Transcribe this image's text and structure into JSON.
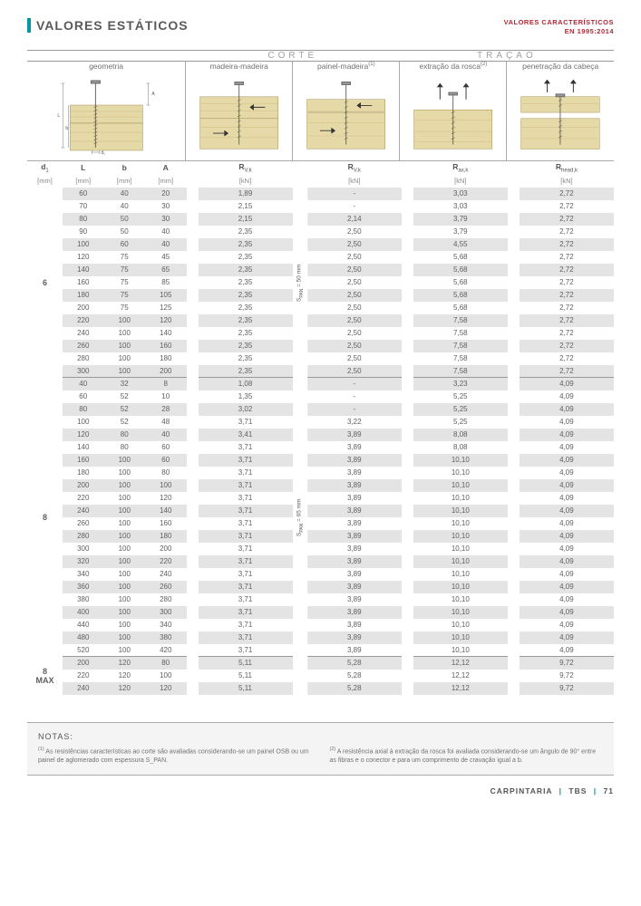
{
  "page_title": "VALORES ESTÁTICOS",
  "corner_text1": "VALORES CARACTERÍSTICOS",
  "corner_text2": "EN 1995:2014",
  "group_labels": {
    "corte": "CORTE",
    "tracao": "TRAÇÃO"
  },
  "column_headers": {
    "geom": "geometria",
    "mm": "madeira-madeira",
    "pm": "painel-madeira",
    "pm_sup": "(1)",
    "er": "extração da rosca",
    "er_sup": "(2)",
    "pc": "penetração da cabeça"
  },
  "symbols": {
    "d1": "d",
    "d1_sub": "1",
    "L": "L",
    "b": "b",
    "A": "A",
    "rvk": "R",
    "rvk_sub": "V,k",
    "raxk": "R",
    "raxk_sub": "ax,k",
    "rhk": "R",
    "rhk_sub": "head,k"
  },
  "units": {
    "mm": "[mm]",
    "kn": "[kN]"
  },
  "vlabels": {
    "s50": "S_PAN = 50 mm",
    "s65": "S_PAN = 65 mm"
  },
  "sections": [
    {
      "d1": "6",
      "vlabel": "s50",
      "rows": [
        [
          "60",
          "40",
          "20",
          "1,89",
          "-",
          "3,03",
          "2,72"
        ],
        [
          "70",
          "40",
          "30",
          "2,15",
          "-",
          "3,03",
          "2,72"
        ],
        [
          "80",
          "50",
          "30",
          "2,15",
          "2,14",
          "3,79",
          "2,72"
        ],
        [
          "90",
          "50",
          "40",
          "2,35",
          "2,50",
          "3,79",
          "2,72"
        ],
        [
          "100",
          "60",
          "40",
          "2,35",
          "2,50",
          "4,55",
          "2,72"
        ],
        [
          "120",
          "75",
          "45",
          "2,35",
          "2,50",
          "5,68",
          "2,72"
        ],
        [
          "140",
          "75",
          "65",
          "2,35",
          "2,50",
          "5,68",
          "2,72"
        ],
        [
          "160",
          "75",
          "85",
          "2,35",
          "2,50",
          "5,68",
          "2,72"
        ],
        [
          "180",
          "75",
          "105",
          "2,35",
          "2,50",
          "5,68",
          "2,72"
        ],
        [
          "200",
          "75",
          "125",
          "2,35",
          "2,50",
          "5,68",
          "2,72"
        ],
        [
          "220",
          "100",
          "120",
          "2,35",
          "2,50",
          "7,58",
          "2,72"
        ],
        [
          "240",
          "100",
          "140",
          "2,35",
          "2,50",
          "7,58",
          "2,72"
        ],
        [
          "260",
          "100",
          "160",
          "2,35",
          "2,50",
          "7,58",
          "2,72"
        ],
        [
          "280",
          "100",
          "180",
          "2,35",
          "2,50",
          "7,58",
          "2,72"
        ],
        [
          "300",
          "100",
          "200",
          "2,35",
          "2,50",
          "7,58",
          "2,72"
        ]
      ]
    },
    {
      "d1": "8",
      "vlabel": "s65",
      "rows": [
        [
          "40",
          "32",
          "8",
          "1,08",
          "-",
          "3,23",
          "4,09"
        ],
        [
          "60",
          "52",
          "10",
          "1,35",
          "-",
          "5,25",
          "4,09"
        ],
        [
          "80",
          "52",
          "28",
          "3,02",
          "-",
          "5,25",
          "4,09"
        ],
        [
          "100",
          "52",
          "48",
          "3,71",
          "3,22",
          "5,25",
          "4,09"
        ],
        [
          "120",
          "80",
          "40",
          "3,41",
          "3,89",
          "8,08",
          "4,09"
        ],
        [
          "140",
          "80",
          "60",
          "3,71",
          "3,89",
          "8,08",
          "4,09"
        ],
        [
          "160",
          "100",
          "60",
          "3,71",
          "3,89",
          "10,10",
          "4,09"
        ],
        [
          "180",
          "100",
          "80",
          "3,71",
          "3,89",
          "10,10",
          "4,09"
        ],
        [
          "200",
          "100",
          "100",
          "3,71",
          "3,89",
          "10,10",
          "4,09"
        ],
        [
          "220",
          "100",
          "120",
          "3,71",
          "3,89",
          "10,10",
          "4,09"
        ],
        [
          "240",
          "100",
          "140",
          "3,71",
          "3,89",
          "10,10",
          "4,09"
        ],
        [
          "260",
          "100",
          "160",
          "3,71",
          "3,89",
          "10,10",
          "4,09"
        ],
        [
          "280",
          "100",
          "180",
          "3,71",
          "3,89",
          "10,10",
          "4,09"
        ],
        [
          "300",
          "100",
          "200",
          "3,71",
          "3,89",
          "10,10",
          "4,09"
        ],
        [
          "320",
          "100",
          "220",
          "3,71",
          "3,89",
          "10,10",
          "4,09"
        ],
        [
          "340",
          "100",
          "240",
          "3,71",
          "3,89",
          "10,10",
          "4,09"
        ],
        [
          "360",
          "100",
          "260",
          "3,71",
          "3,89",
          "10,10",
          "4,09"
        ],
        [
          "380",
          "100",
          "280",
          "3,71",
          "3,89",
          "10,10",
          "4,09"
        ],
        [
          "400",
          "100",
          "300",
          "3,71",
          "3,89",
          "10,10",
          "4,09"
        ],
        [
          "440",
          "100",
          "340",
          "3,71",
          "3,89",
          "10,10",
          "4,09"
        ],
        [
          "480",
          "100",
          "380",
          "3,71",
          "3,89",
          "10,10",
          "4,09"
        ],
        [
          "520",
          "100",
          "420",
          "3,71",
          "3,89",
          "10,10",
          "4,09"
        ]
      ]
    },
    {
      "d1": "8 MAX",
      "vlabel": "",
      "rows": [
        [
          "200",
          "120",
          "80",
          "5,11",
          "5,28",
          "12,12",
          "9,72"
        ],
        [
          "220",
          "120",
          "100",
          "5,11",
          "5,28",
          "12,12",
          "9,72"
        ],
        [
          "240",
          "120",
          "120",
          "5,11",
          "5,28",
          "12,12",
          "9,72"
        ]
      ]
    }
  ],
  "notas": {
    "title": "NOTAS:",
    "n1_sup": "(1)",
    "n1": "As resistências características ao corte são avaliadas considerando-se um painel OSB ou um painel de aglomerado com espessura S_PAN.",
    "n2_sup": "(2)",
    "n2": "A resistência axial à extração da rosca foi avaliada considerando-se um ângulo de 90° entre as fibras e o conector e para um comprimento de cravação igual a b."
  },
  "footer": {
    "a": "CARPINTARIA",
    "b": "TBS",
    "c": "71"
  },
  "colwidths": {
    "d1": "6%",
    "geom": "7%",
    "spacer": "2%",
    "vlabel": "2%",
    "main": "18%"
  },
  "colors": {
    "accent": "#0097a7",
    "subtitle": "#b02a37",
    "stripe": "#e4e4e4",
    "text": "#5a5a5a",
    "muted": "#888888",
    "border": "#999999",
    "wood": "#e6d9a8",
    "wood_line": "#c9b874"
  },
  "fonts": {
    "title_pt": 14,
    "colhdr_pt": 8.5,
    "data_pt": 8,
    "notas_pt": 7
  }
}
